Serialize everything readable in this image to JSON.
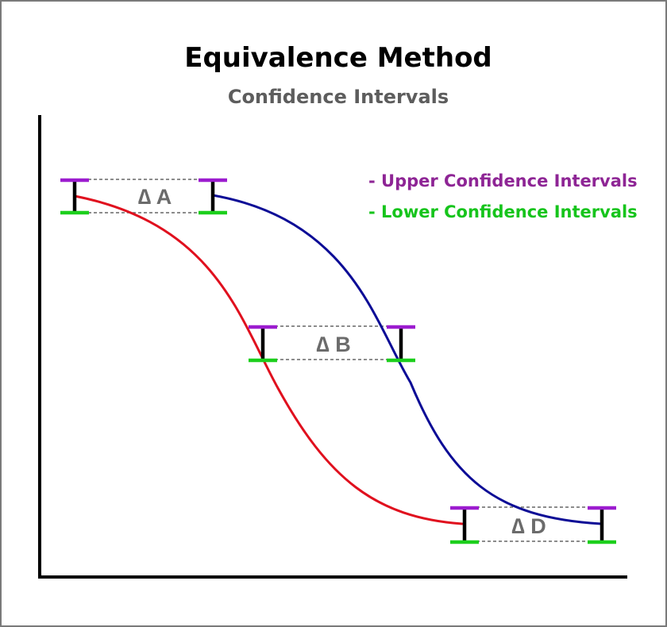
{
  "title": "Equivalence Method",
  "subtitle": "Confidence Intervals",
  "colors": {
    "upper": "#9c1ccf",
    "lower": "#1ccf1c",
    "curve_left": "#e0101e",
    "curve_right": "#0c0c96",
    "legend_upper_text": "#8e2595",
    "legend_lower_text": "#16c41c"
  },
  "legend": [
    {
      "label": "- Upper Confidence Intervals",
      "color": "#8e2595"
    },
    {
      "label": "- Lower Confidence Intervals",
      "color": "#16c41c"
    }
  ],
  "deltas": [
    {
      "label": "∆ A"
    },
    {
      "label": "∆ B"
    },
    {
      "label": "∆ D"
    }
  ]
}
